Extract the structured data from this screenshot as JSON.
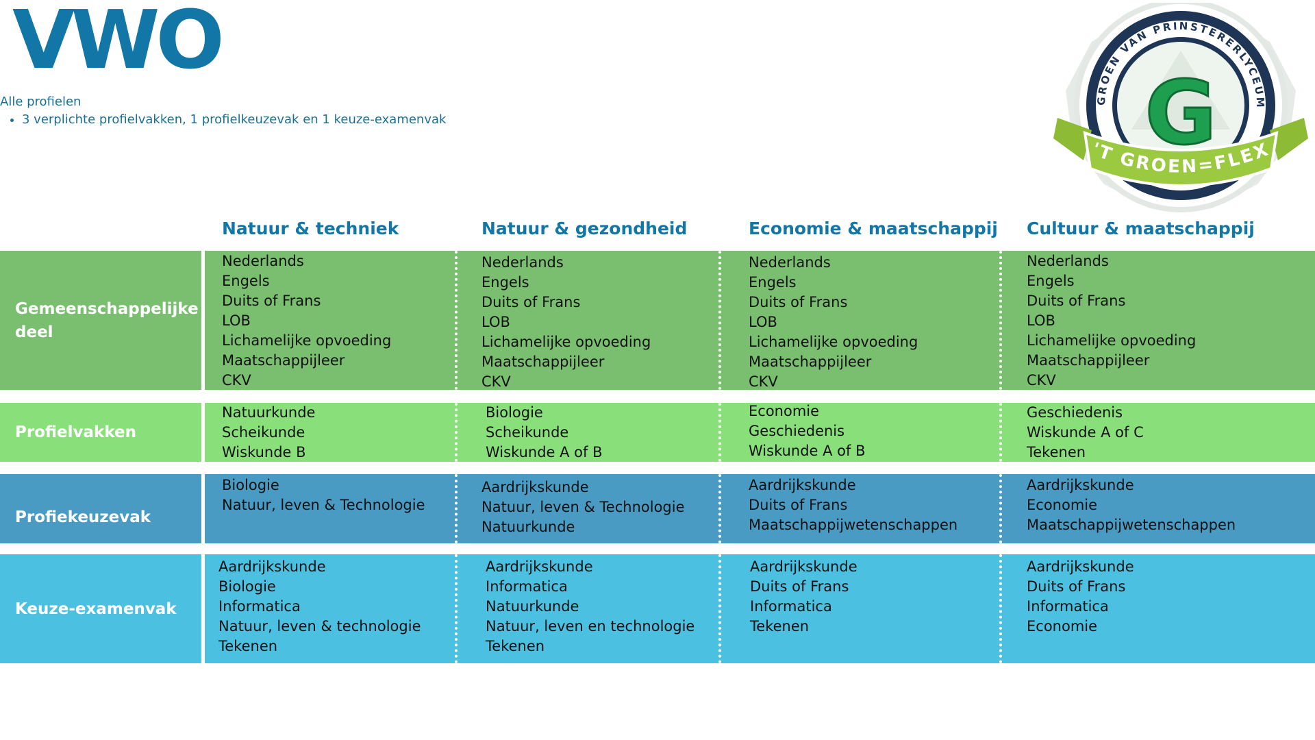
{
  "header": {
    "title": "VWO",
    "subtitle": "Alle profielen",
    "bullets": [
      "3 verplichte profielvakken, 1 profielkeuzevak en 1 keuze-examenvak"
    ]
  },
  "logo": {
    "arc_text": "GROEN VAN PRINSTERERLYCEUM",
    "letter": "G",
    "banner_text": "'T GROEN=FLEX"
  },
  "columns": [
    "Natuur & techniek",
    "Natuur & gezondheid",
    "Economie & maatschappij",
    "Cultuur & maatschappij"
  ],
  "rows": [
    {
      "label": "Gemeenschappelijke deel",
      "cells": [
        [
          "Nederlands",
          "Engels",
          "Duits of Frans",
          "LOB",
          "Lichamelijke opvoeding",
          "Maatschappijleer",
          "CKV"
        ],
        [
          "Nederlands",
          "Engels",
          "Duits of Frans",
          "LOB",
          "Lichamelijke opvoeding",
          "Maatschappijleer",
          "CKV"
        ],
        [
          "Nederlands",
          "Engels",
          "Duits of Frans",
          "LOB",
          "Lichamelijke opvoeding",
          "Maatschappijleer",
          "CKV"
        ],
        [
          "Nederlands",
          "Engels",
          "Duits of Frans",
          "LOB",
          "Lichamelijke opvoeding",
          "Maatschappijleer",
          "CKV"
        ]
      ]
    },
    {
      "label": "Profielvakken",
      "cells": [
        [
          "Natuurkunde",
          "Scheikunde",
          "Wiskunde B"
        ],
        [
          "Biologie",
          "Scheikunde",
          "Wiskunde A of B"
        ],
        [
          "Economie",
          "Geschiedenis",
          "Wiskunde A of B"
        ],
        [
          "Geschiedenis",
          "Wiskunde A of C",
          "Tekenen"
        ]
      ]
    },
    {
      "label": "Profiekeuzevak",
      "cells": [
        [
          "Biologie",
          "Natuur, leven & Technologie"
        ],
        [
          "Aardrijkskunde",
          "Natuur, leven & Technologie",
          "Natuurkunde"
        ],
        [
          "Aardrijkskunde",
          "Duits of Frans",
          "Maatschappijwetenschappen"
        ],
        [
          "Aardrijkskunde",
          "Economie",
          "Maatschappijwetenschappen"
        ]
      ]
    },
    {
      "label": "Keuze-examenvak",
      "cells": [
        [
          "Aardrijkskunde",
          "Biologie",
          "Informatica",
          "Natuur, leven & technologie",
          "Tekenen"
        ],
        [
          "Aardrijkskunde",
          "Informatica",
          "Natuurkunde",
          "Natuur, leven en technologie",
          "Tekenen"
        ],
        [
          "Aardrijkskunde",
          "Duits of Frans",
          "Informatica",
          "Tekenen"
        ],
        [
          "Aardrijkskunde",
          "Duits of Frans",
          "Informatica",
          "Economie"
        ]
      ]
    }
  ],
  "colors": {
    "title": "#1277a6",
    "gemeenschappelijk": "#79bf6f",
    "profielvakken": "#89e07b",
    "profielkeuzevak": "#4a9bc4",
    "keuze_examenvak": "#4bc0e0"
  }
}
